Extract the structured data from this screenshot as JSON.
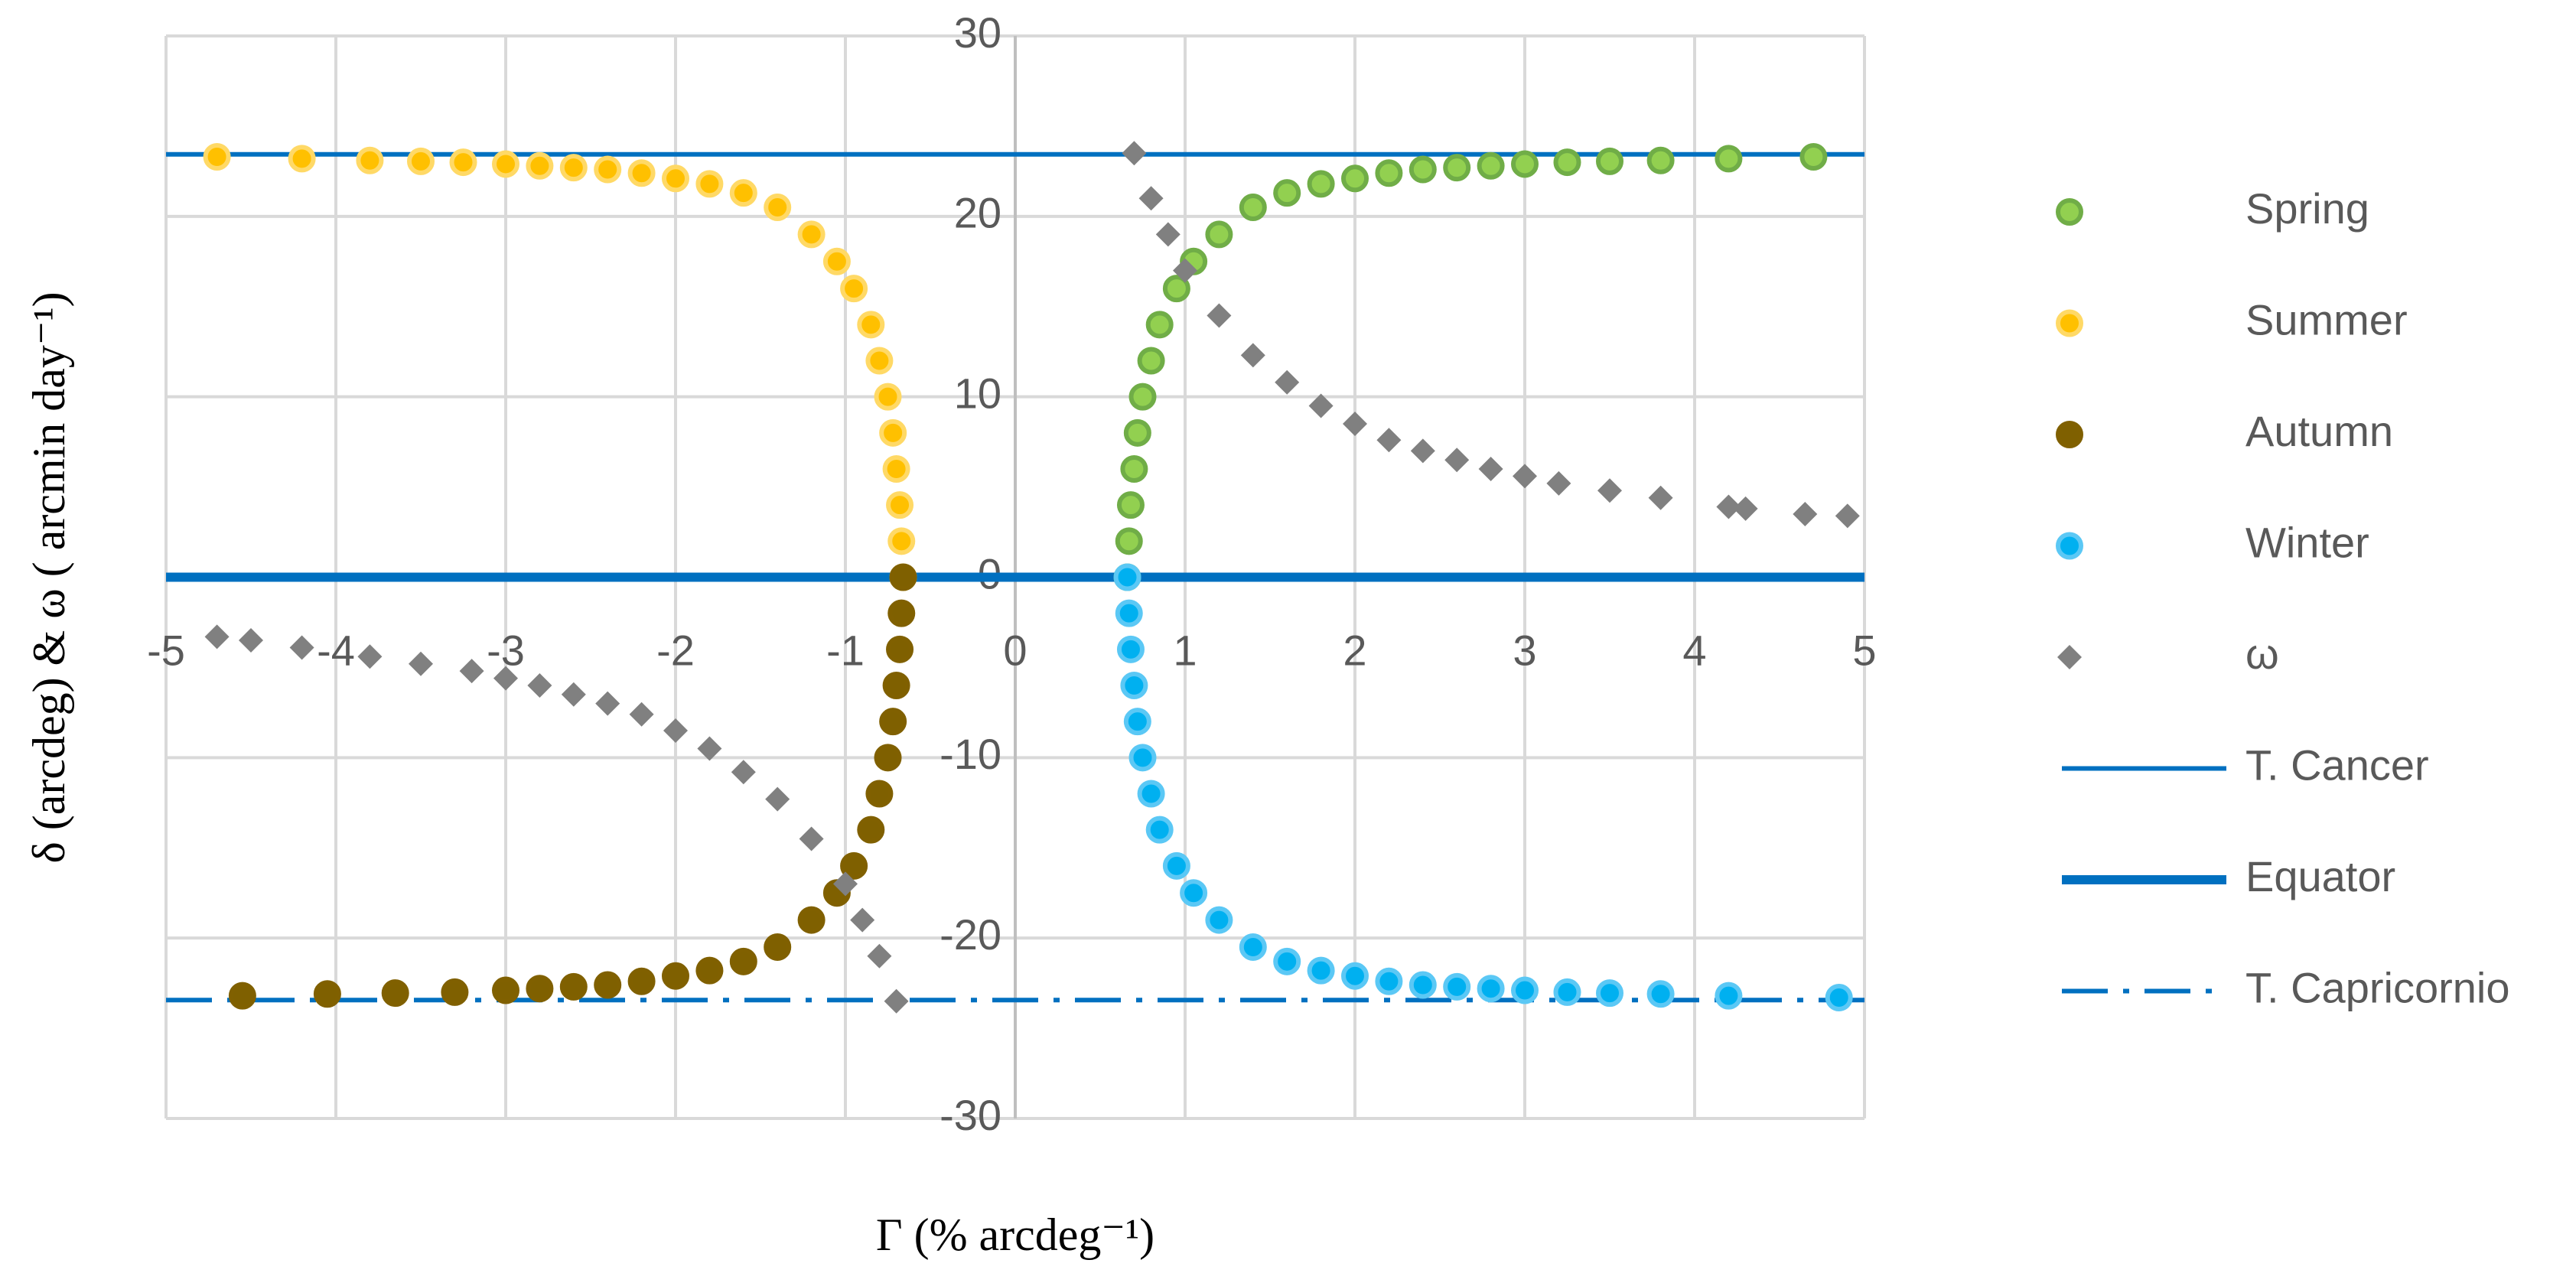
{
  "chart_data": {
    "type": "scatter",
    "x_label": "Γ (% arcdeg⁻¹)",
    "y_label": "δ (arcdeg)  &  ω ( arcmin day⁻¹)",
    "xlim": [
      -5,
      5
    ],
    "xticks": [
      -5,
      -4,
      -3,
      -2,
      -1,
      0,
      1,
      2,
      3,
      4,
      5
    ],
    "ylim": [
      -30,
      30
    ],
    "yticks": [
      -30,
      -20,
      -10,
      0,
      10,
      20,
      30
    ],
    "grid": true,
    "legend": "right",
    "series": [
      {
        "name": "Spring",
        "color": "#92d050",
        "edge": "#70ad47",
        "marker": "circle",
        "x": [
          0.66,
          0.67,
          0.68,
          0.7,
          0.72,
          0.75,
          0.8,
          0.85,
          0.95,
          1.05,
          1.2,
          1.4,
          1.6,
          1.8,
          2.0,
          2.2,
          2.4,
          2.6,
          2.8,
          3.0,
          3.25,
          3.5,
          3.8,
          4.2,
          4.7
        ],
        "values": [
          0,
          2,
          4,
          6,
          8,
          10,
          12,
          14,
          16,
          17.5,
          19,
          20.5,
          21.3,
          21.8,
          22.1,
          22.4,
          22.6,
          22.7,
          22.8,
          22.9,
          23,
          23.05,
          23.1,
          23.2,
          23.3
        ]
      },
      {
        "name": "Summer",
        "color": "#ffc000",
        "edge": "#ffd966",
        "marker": "circle",
        "x": [
          -0.66,
          -0.67,
          -0.68,
          -0.7,
          -0.72,
          -0.75,
          -0.8,
          -0.85,
          -0.95,
          -1.05,
          -1.2,
          -1.4,
          -1.6,
          -1.8,
          -2.0,
          -2.2,
          -2.4,
          -2.6,
          -2.8,
          -3.0,
          -3.25,
          -3.5,
          -3.8,
          -4.2,
          -4.7
        ],
        "values": [
          0,
          2,
          4,
          6,
          8,
          10,
          12,
          14,
          16,
          17.5,
          19,
          20.5,
          21.3,
          21.8,
          22.1,
          22.4,
          22.6,
          22.7,
          22.8,
          22.9,
          23,
          23.05,
          23.1,
          23.2,
          23.3
        ]
      },
      {
        "name": "Autumn",
        "color": "#7f6000",
        "edge": "#806000",
        "marker": "circle",
        "x": [
          -0.66,
          -0.67,
          -0.68,
          -0.7,
          -0.72,
          -0.75,
          -0.8,
          -0.85,
          -0.95,
          -1.05,
          -1.2,
          -1.4,
          -1.6,
          -1.8,
          -2.0,
          -2.2,
          -2.4,
          -2.6,
          -2.8,
          -3.0,
          -3.3,
          -3.65,
          -4.05,
          -4.55
        ],
        "values": [
          0,
          -2,
          -4,
          -6,
          -8,
          -10,
          -12,
          -14,
          -16,
          -17.5,
          -19,
          -20.5,
          -21.3,
          -21.8,
          -22.1,
          -22.4,
          -22.6,
          -22.7,
          -22.8,
          -22.9,
          -23,
          -23.05,
          -23.1,
          -23.2
        ]
      },
      {
        "name": "Winter",
        "color": "#00b0f0",
        "edge": "#5bc8f5",
        "marker": "circle",
        "x": [
          0.66,
          0.67,
          0.68,
          0.7,
          0.72,
          0.75,
          0.8,
          0.85,
          0.95,
          1.05,
          1.2,
          1.4,
          1.6,
          1.8,
          2.0,
          2.2,
          2.4,
          2.6,
          2.8,
          3.0,
          3.25,
          3.5,
          3.8,
          4.2,
          4.85
        ],
        "values": [
          0,
          -2,
          -4,
          -6,
          -8,
          -10,
          -12,
          -14,
          -16,
          -17.5,
          -19,
          -20.5,
          -21.3,
          -21.8,
          -22.1,
          -22.4,
          -22.6,
          -22.7,
          -22.8,
          -22.9,
          -23,
          -23.05,
          -23.1,
          -23.2,
          -23.3
        ]
      },
      {
        "name": "ω",
        "color": "#808080",
        "edge": "#808080",
        "marker": "diamond",
        "x": [
          0.7,
          0.8,
          0.9,
          1,
          1.2,
          1.4,
          1.6,
          1.8,
          2,
          2.2,
          2.4,
          2.6,
          2.8,
          3,
          3.2,
          3.5,
          3.8,
          4.2,
          4.3,
          4.65,
          4.9,
          -0.7,
          -0.8,
          -0.9,
          -1,
          -1.2,
          -1.4,
          -1.6,
          -1.8,
          -2,
          -2.2,
          -2.4,
          -2.6,
          -2.8,
          -3,
          -3.2,
          -3.5,
          -3.8,
          -4.2,
          -4.5,
          -4.7
        ],
        "values": [
          23.5,
          21,
          19,
          17,
          14.5,
          12.3,
          10.8,
          9.5,
          8.5,
          7.6,
          7,
          6.5,
          6,
          5.6,
          5.2,
          4.8,
          4.4,
          3.9,
          3.8,
          3.5,
          3.4,
          -23.5,
          -21,
          -19,
          -17,
          -14.5,
          -12.3,
          -10.8,
          -9.5,
          -8.5,
          -7.6,
          -7,
          -6.5,
          -6,
          -5.6,
          -5.2,
          -4.8,
          -4.4,
          -3.9,
          -3.5,
          -3.3
        ]
      },
      {
        "name": "T. Cancer",
        "color": "#0070c0",
        "marker": "line",
        "dash": "solid",
        "line_width": 2,
        "x": [
          -5,
          5
        ],
        "values": [
          23.44,
          23.44
        ]
      },
      {
        "name": "Equator",
        "color": "#0070c0",
        "marker": "line",
        "dash": "solid",
        "line_width": 4,
        "x": [
          -5,
          5
        ],
        "values": [
          0,
          0
        ]
      },
      {
        "name": "T. Capricornio",
        "color": "#0070c0",
        "marker": "line",
        "dash": "dash-dot",
        "line_width": 2,
        "x": [
          -5,
          5
        ],
        "values": [
          -23.44,
          -23.44
        ]
      }
    ]
  }
}
